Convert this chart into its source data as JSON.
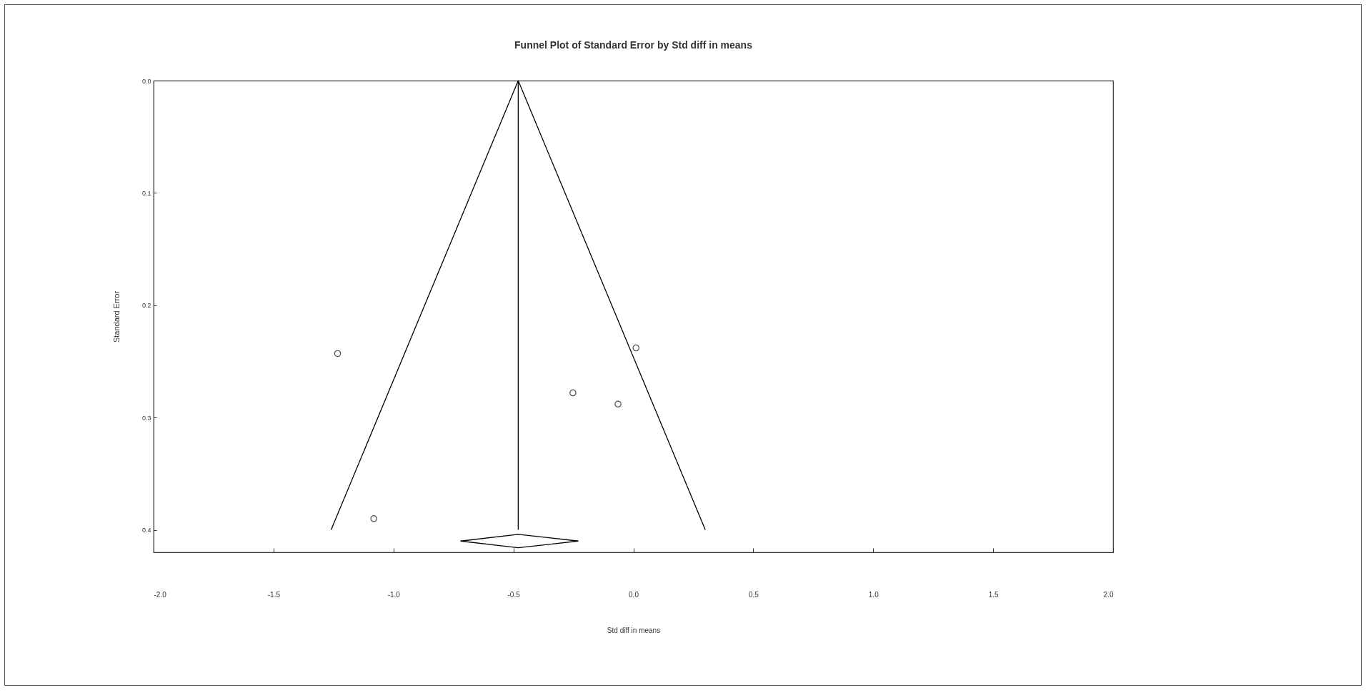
{
  "chart_data": {
    "type": "scatter",
    "title": "Funnel Plot of Standard Error by Std diff in means",
    "xlabel": "Std diff in means",
    "ylabel": "Standard Error",
    "series": [
      {
        "color": "#000000",
        "marker": "circle",
        "x": [
          -1.233,
          -1.082,
          -0.252,
          -0.064,
          0.011
        ],
        "values": [
          0.243,
          0.39,
          0.278,
          0.288,
          0.238
        ]
      },
      {
        "type": "line",
        "color": "#000000",
        "x": [
          -1.26,
          -0.48,
          0.3
        ],
        "values": [
          0.4,
          0.0,
          0.4
        ]
      },
      {
        "type": "line",
        "color": "#000000",
        "x": [
          -0.48,
          -0.48
        ],
        "values": [
          0.0,
          0.4
        ]
      },
      {
        "type": "line",
        "color": "#000000",
        "x": [
          -0.72,
          -0.48,
          -0.23
        ],
        "values": [
          0.41,
          0.404,
          0.41
        ]
      },
      {
        "type": "line",
        "color": "#000000",
        "x": [
          -0.72,
          -0.48,
          -0.23
        ],
        "values": [
          0.41,
          0.416,
          0.41
        ]
      }
    ],
    "xlim": [
      -2.0,
      2.0
    ],
    "ylim": [
      0.42,
      0.0
    ],
    "xticks": [
      {
        "value": -2,
        "label": "-2.0"
      },
      {
        "value": -1.5,
        "label": "-1.5"
      },
      {
        "value": -1,
        "label": "-1.0"
      },
      {
        "value": -0.5,
        "label": "-0.5"
      },
      {
        "value": 0,
        "label": "0.0"
      },
      {
        "value": 0.5,
        "label": "0.5"
      },
      {
        "value": 1,
        "label": "1.0"
      },
      {
        "value": 1.5,
        "label": "1.5"
      },
      {
        "value": 2,
        "label": "2.0"
      }
    ],
    "yticks": [
      {
        "value": 0,
        "label": "0.0"
      },
      {
        "value": 0.1,
        "label": "0.1"
      },
      {
        "value": 0.2,
        "label": "0.2"
      },
      {
        "value": 0.3,
        "label": "0.3"
      },
      {
        "value": 0.4,
        "label": "0.4"
      }
    ],
    "grid": false,
    "legend": false
  }
}
